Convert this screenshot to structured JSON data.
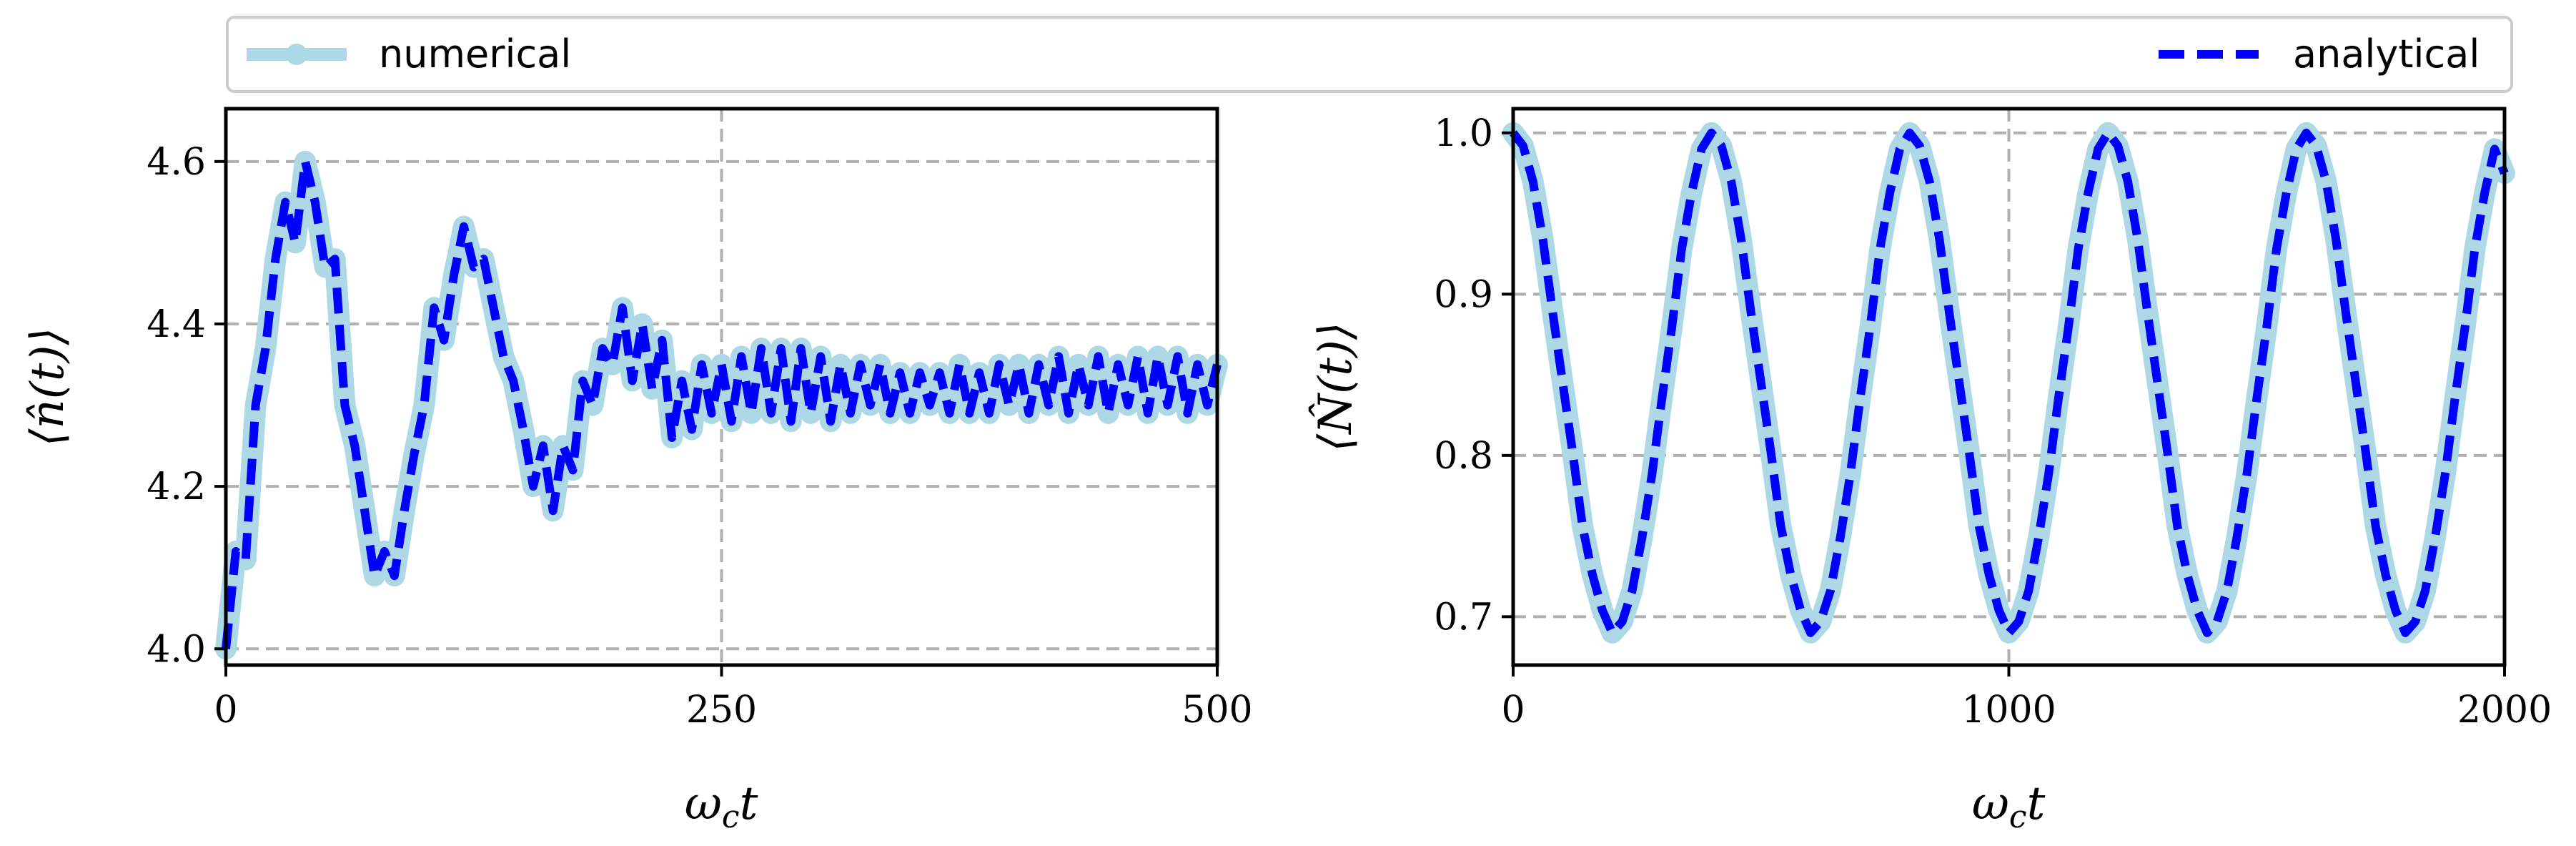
{
  "legend": {
    "numerical_label": "numerical",
    "analytical_label": "analytical",
    "numerical_color": "#add8e6",
    "analytical_color": "#0000ff"
  },
  "chart_data": [
    {
      "type": "line",
      "xlabel": "ωct",
      "ylabel": "⟨n̂(t)⟩",
      "xlim": [
        0,
        500
      ],
      "ylim": [
        3.98,
        4.665
      ],
      "xticks": [
        0,
        250,
        500
      ],
      "xtick_labels": [
        "0",
        "250",
        "500"
      ],
      "yticks": [
        4.0,
        4.2,
        4.4,
        4.6
      ],
      "ytick_labels": [
        "4.0",
        "4.2",
        "4.4",
        "4.6"
      ],
      "grid": true,
      "legend_position": "top-spanning",
      "series": [
        {
          "name": "numerical",
          "x": [
            0,
            5,
            10,
            15,
            20,
            25,
            30,
            35,
            40,
            45,
            50,
            55,
            60,
            65,
            70,
            75,
            80,
            85,
            90,
            95,
            100,
            105,
            110,
            115,
            120,
            125,
            130,
            135,
            140,
            145,
            150,
            155,
            160,
            165,
            170,
            175,
            180,
            185,
            190,
            195,
            200,
            205,
            210,
            215,
            220,
            225,
            230,
            235,
            240,
            245,
            250,
            255,
            260,
            265,
            270,
            275,
            280,
            285,
            290,
            295,
            300,
            305,
            310,
            315,
            320,
            325,
            330,
            335,
            340,
            345,
            350,
            355,
            360,
            365,
            370,
            375,
            380,
            385,
            390,
            395,
            400,
            405,
            410,
            415,
            420,
            425,
            430,
            435,
            440,
            445,
            450,
            455,
            460,
            465,
            470,
            475,
            480,
            485,
            490,
            495,
            500
          ],
          "y": [
            4.0,
            4.12,
            4.11,
            4.3,
            4.37,
            4.48,
            4.55,
            4.5,
            4.6,
            4.55,
            4.47,
            4.48,
            4.3,
            4.25,
            4.17,
            4.09,
            4.12,
            4.09,
            4.17,
            4.24,
            4.3,
            4.42,
            4.38,
            4.46,
            4.52,
            4.47,
            4.48,
            4.42,
            4.36,
            4.33,
            4.27,
            4.2,
            4.25,
            4.17,
            4.25,
            4.22,
            4.33,
            4.3,
            4.37,
            4.35,
            4.42,
            4.33,
            4.4,
            4.32,
            4.38,
            4.26,
            4.33,
            4.27,
            4.35,
            4.29,
            4.35,
            4.28,
            4.36,
            4.29,
            4.37,
            4.29,
            4.37,
            4.28,
            4.37,
            4.29,
            4.36,
            4.28,
            4.35,
            4.29,
            4.35,
            4.3,
            4.35,
            4.29,
            4.34,
            4.29,
            4.34,
            4.3,
            4.34,
            4.29,
            4.35,
            4.29,
            4.34,
            4.29,
            4.35,
            4.3,
            4.35,
            4.29,
            4.35,
            4.3,
            4.36,
            4.29,
            4.35,
            4.3,
            4.36,
            4.29,
            4.35,
            4.3,
            4.36,
            4.29,
            4.36,
            4.3,
            4.36,
            4.29,
            4.35,
            4.3,
            4.35
          ]
        },
        {
          "name": "analytical",
          "x": [
            0,
            5,
            10,
            15,
            20,
            25,
            30,
            35,
            40,
            45,
            50,
            55,
            60,
            65,
            70,
            75,
            80,
            85,
            90,
            95,
            100,
            105,
            110,
            115,
            120,
            125,
            130,
            135,
            140,
            145,
            150,
            155,
            160,
            165,
            170,
            175,
            180,
            185,
            190,
            195,
            200,
            205,
            210,
            215,
            220,
            225,
            230,
            235,
            240,
            245,
            250,
            255,
            260,
            265,
            270,
            275,
            280,
            285,
            290,
            295,
            300,
            305,
            310,
            315,
            320,
            325,
            330,
            335,
            340,
            345,
            350,
            355,
            360,
            365,
            370,
            375,
            380,
            385,
            390,
            395,
            400,
            405,
            410,
            415,
            420,
            425,
            430,
            435,
            440,
            445,
            450,
            455,
            460,
            465,
            470,
            475,
            480,
            485,
            490,
            495,
            500
          ],
          "y": [
            4.0,
            4.12,
            4.11,
            4.3,
            4.37,
            4.48,
            4.55,
            4.5,
            4.6,
            4.55,
            4.47,
            4.48,
            4.3,
            4.25,
            4.17,
            4.09,
            4.12,
            4.09,
            4.17,
            4.24,
            4.3,
            4.42,
            4.38,
            4.46,
            4.52,
            4.47,
            4.48,
            4.42,
            4.36,
            4.33,
            4.27,
            4.2,
            4.25,
            4.17,
            4.25,
            4.22,
            4.33,
            4.3,
            4.37,
            4.35,
            4.42,
            4.33,
            4.4,
            4.32,
            4.38,
            4.26,
            4.33,
            4.27,
            4.35,
            4.29,
            4.35,
            4.28,
            4.36,
            4.29,
            4.37,
            4.29,
            4.37,
            4.28,
            4.37,
            4.29,
            4.36,
            4.28,
            4.35,
            4.29,
            4.35,
            4.3,
            4.35,
            4.29,
            4.34,
            4.29,
            4.34,
            4.3,
            4.34,
            4.29,
            4.35,
            4.29,
            4.34,
            4.29,
            4.35,
            4.3,
            4.35,
            4.29,
            4.35,
            4.3,
            4.36,
            4.29,
            4.35,
            4.3,
            4.36,
            4.29,
            4.35,
            4.3,
            4.36,
            4.29,
            4.36,
            4.3,
            4.36,
            4.29,
            4.35,
            4.3,
            4.35
          ]
        }
      ]
    },
    {
      "type": "line",
      "xlabel": "ωct",
      "ylabel": "⟨N̂(t)⟩",
      "xlim": [
        0,
        2000
      ],
      "ylim": [
        0.67,
        1.015
      ],
      "xticks": [
        0,
        1000,
        2000
      ],
      "xtick_labels": [
        "0",
        "1000",
        "2000"
      ],
      "yticks": [
        0.7,
        0.8,
        0.9,
        1.0
      ],
      "ytick_labels": [
        "0.7",
        "0.8",
        "0.9",
        "1.0"
      ],
      "grid": true,
      "series": [
        {
          "name": "numerical",
          "x": [
            0,
            20,
            40,
            60,
            80,
            100,
            120,
            140,
            160,
            180,
            200,
            220,
            240,
            260,
            280,
            300,
            320,
            340,
            360,
            380,
            400,
            420,
            440,
            460,
            480,
            500,
            520,
            540,
            560,
            580,
            600,
            620,
            640,
            660,
            680,
            700,
            720,
            740,
            760,
            780,
            800,
            820,
            840,
            860,
            880,
            900,
            920,
            940,
            960,
            980,
            1000,
            1020,
            1040,
            1060,
            1080,
            1100,
            1120,
            1140,
            1160,
            1180,
            1200,
            1220,
            1240,
            1260,
            1280,
            1300,
            1320,
            1340,
            1360,
            1380,
            1400,
            1420,
            1440,
            1460,
            1480,
            1500,
            1520,
            1540,
            1560,
            1580,
            1600,
            1620,
            1640,
            1660,
            1680,
            1700,
            1720,
            1740,
            1760,
            1780,
            1800,
            1820,
            1840,
            1860,
            1880,
            1900,
            1920,
            1940,
            1960,
            1980,
            2000
          ],
          "y": [
            1.0,
            0.992,
            0.97,
            0.934,
            0.888,
            0.845,
            0.802,
            0.756,
            0.726,
            0.704,
            0.69,
            0.697,
            0.716,
            0.749,
            0.788,
            0.835,
            0.879,
            0.928,
            0.963,
            0.99,
            1.0,
            0.992,
            0.97,
            0.934,
            0.888,
            0.845,
            0.802,
            0.756,
            0.726,
            0.704,
            0.69,
            0.697,
            0.716,
            0.749,
            0.788,
            0.835,
            0.879,
            0.928,
            0.963,
            0.99,
            1.0,
            0.992,
            0.97,
            0.934,
            0.888,
            0.845,
            0.802,
            0.756,
            0.726,
            0.704,
            0.69,
            0.697,
            0.716,
            0.749,
            0.788,
            0.835,
            0.879,
            0.928,
            0.963,
            0.99,
            1.0,
            0.992,
            0.97,
            0.934,
            0.888,
            0.845,
            0.802,
            0.756,
            0.726,
            0.704,
            0.69,
            0.697,
            0.716,
            0.749,
            0.788,
            0.835,
            0.879,
            0.928,
            0.963,
            0.99,
            1.0,
            0.992,
            0.97,
            0.934,
            0.888,
            0.845,
            0.802,
            0.756,
            0.726,
            0.704,
            0.69,
            0.697,
            0.716,
            0.749,
            0.788,
            0.835,
            0.879,
            0.928,
            0.963,
            0.99,
            0.975
          ]
        },
        {
          "name": "analytical",
          "x": [
            0,
            20,
            40,
            60,
            80,
            100,
            120,
            140,
            160,
            180,
            200,
            220,
            240,
            260,
            280,
            300,
            320,
            340,
            360,
            380,
            400,
            420,
            440,
            460,
            480,
            500,
            520,
            540,
            560,
            580,
            600,
            620,
            640,
            660,
            680,
            700,
            720,
            740,
            760,
            780,
            800,
            820,
            840,
            860,
            880,
            900,
            920,
            940,
            960,
            980,
            1000,
            1020,
            1040,
            1060,
            1080,
            1100,
            1120,
            1140,
            1160,
            1180,
            1200,
            1220,
            1240,
            1260,
            1280,
            1300,
            1320,
            1340,
            1360,
            1380,
            1400,
            1420,
            1440,
            1460,
            1480,
            1500,
            1520,
            1540,
            1560,
            1580,
            1600,
            1620,
            1640,
            1660,
            1680,
            1700,
            1720,
            1740,
            1760,
            1780,
            1800,
            1820,
            1840,
            1860,
            1880,
            1900,
            1920,
            1940,
            1960,
            1980,
            2000
          ],
          "y": [
            1.0,
            0.992,
            0.97,
            0.934,
            0.888,
            0.845,
            0.802,
            0.756,
            0.726,
            0.704,
            0.69,
            0.697,
            0.716,
            0.749,
            0.788,
            0.835,
            0.879,
            0.928,
            0.963,
            0.99,
            1.0,
            0.992,
            0.97,
            0.934,
            0.888,
            0.845,
            0.802,
            0.756,
            0.726,
            0.704,
            0.69,
            0.697,
            0.716,
            0.749,
            0.788,
            0.835,
            0.879,
            0.928,
            0.963,
            0.99,
            1.0,
            0.992,
            0.97,
            0.934,
            0.888,
            0.845,
            0.802,
            0.756,
            0.726,
            0.704,
            0.69,
            0.697,
            0.716,
            0.749,
            0.788,
            0.835,
            0.879,
            0.928,
            0.963,
            0.99,
            1.0,
            0.992,
            0.97,
            0.934,
            0.888,
            0.845,
            0.802,
            0.756,
            0.726,
            0.704,
            0.69,
            0.697,
            0.716,
            0.749,
            0.788,
            0.835,
            0.879,
            0.928,
            0.963,
            0.99,
            1.0,
            0.992,
            0.97,
            0.934,
            0.888,
            0.845,
            0.802,
            0.756,
            0.726,
            0.704,
            0.69,
            0.697,
            0.716,
            0.749,
            0.788,
            0.835,
            0.879,
            0.928,
            0.963,
            0.99,
            0.975
          ]
        }
      ]
    }
  ]
}
